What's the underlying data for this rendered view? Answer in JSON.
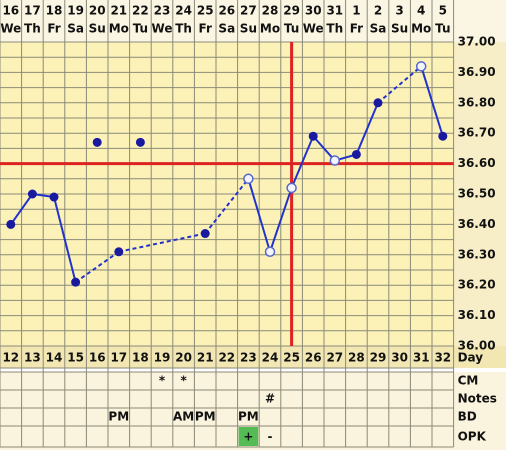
{
  "chart_data": {
    "type": "fertility",
    "dates": [
      "16",
      "17",
      "18",
      "19",
      "20",
      "21",
      "22",
      "23",
      "24",
      "25",
      "26",
      "27",
      "28",
      "29",
      "30",
      "31",
      "1",
      "2",
      "3",
      "4",
      "5"
    ],
    "weekdays": [
      "We",
      "Th",
      "Fr",
      "Sa",
      "Su",
      "Mo",
      "Tu",
      "We",
      "Th",
      "Fr",
      "Sa",
      "Su",
      "Mo",
      "Tu",
      "We",
      "Th",
      "Fr",
      "Sa",
      "Su",
      "Mo",
      "Tu"
    ],
    "days": [
      12,
      13,
      14,
      15,
      16,
      17,
      18,
      19,
      20,
      21,
      22,
      23,
      24,
      25,
      26,
      27,
      28,
      29,
      30,
      31,
      32
    ],
    "values": [
      36.4,
      36.5,
      36.49,
      36.21,
      36.67,
      36.31,
      36.67,
      null,
      null,
      36.37,
      null,
      36.55,
      36.31,
      36.52,
      36.69,
      36.61,
      36.63,
      36.8,
      null,
      36.92,
      36.69
    ],
    "point_style": [
      "solid",
      "solid",
      "solid",
      "solid",
      "excluded",
      "solid",
      "excluded",
      null,
      null,
      "solid",
      null,
      "hollow",
      "hollow",
      "hollow",
      "solid",
      "hollow",
      "solid",
      "solid",
      null,
      "hollow",
      "solid"
    ],
    "ylim": [
      36,
      37
    ],
    "yticks": [
      {
        "value": 36,
        "label": "36.00"
      },
      {
        "value": 36.1,
        "label": "36.10"
      },
      {
        "value": 36.2,
        "label": "36.20"
      },
      {
        "value": 36.3,
        "label": "36.30"
      },
      {
        "value": 36.4,
        "label": "36.40"
      },
      {
        "value": 36.5,
        "label": "36.50"
      },
      {
        "value": 36.6,
        "label": "36.60"
      },
      {
        "value": 36.7,
        "label": "36.70"
      },
      {
        "value": 36.8,
        "label": "36.80"
      },
      {
        "value": 36.9,
        "label": "36.90"
      },
      {
        "value": 37,
        "label": "37.00"
      }
    ],
    "coverline": 36.6,
    "ovulation_day": 25,
    "line_color": "#2233cc",
    "marker_color": "#dd2222",
    "grid": true,
    "row_labels": {
      "day": "Day",
      "cm": "CM",
      "notes": "Notes",
      "bd": "BD",
      "opk": "OPK"
    },
    "cm": [
      null,
      null,
      null,
      null,
      null,
      null,
      null,
      "*",
      "*",
      null,
      null,
      null,
      null,
      null,
      null,
      null,
      null,
      null,
      null,
      null,
      null
    ],
    "notes": [
      null,
      null,
      null,
      null,
      null,
      null,
      null,
      null,
      null,
      null,
      null,
      null,
      "#",
      null,
      null,
      null,
      null,
      null,
      null,
      null,
      null
    ],
    "bd": [
      null,
      null,
      null,
      null,
      null,
      "PM",
      null,
      null,
      "AM",
      "PM",
      null,
      "PM",
      null,
      null,
      null,
      null,
      null,
      null,
      null,
      null,
      null
    ],
    "opk": [
      null,
      null,
      null,
      null,
      null,
      null,
      null,
      null,
      null,
      null,
      null,
      "+",
      "-",
      null,
      null,
      null,
      null,
      null,
      null,
      null,
      null
    ],
    "opk_positive_color": "#55bb55"
  }
}
